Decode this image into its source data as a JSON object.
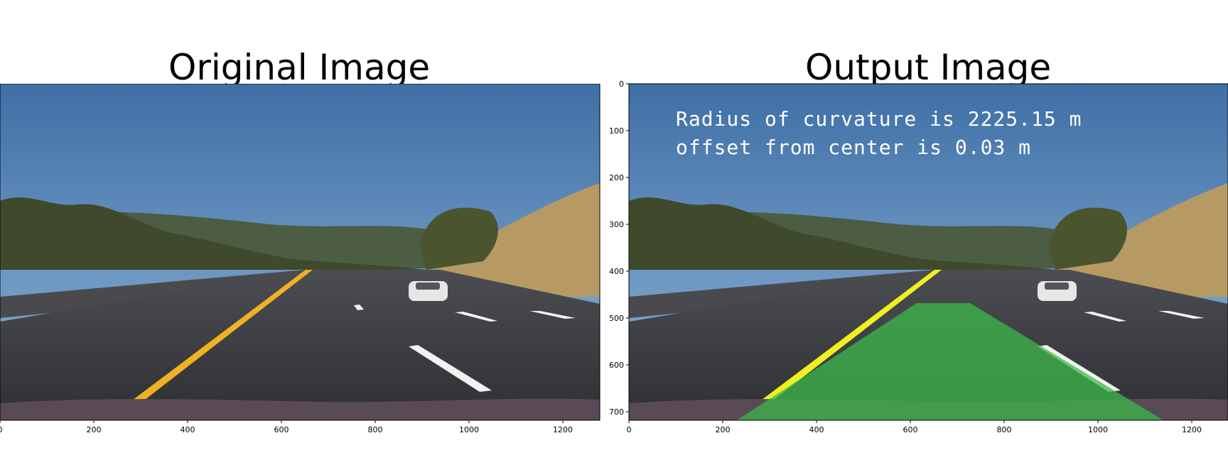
{
  "left_panel": {
    "title": "Original Image",
    "x_ticks": [
      "0",
      "200",
      "400",
      "600",
      "800",
      "1000",
      "1200"
    ]
  },
  "right_panel": {
    "title": "Output Image",
    "x_ticks": [
      "0",
      "200",
      "400",
      "600",
      "800",
      "1000",
      "1200"
    ],
    "y_ticks": [
      "0",
      "100",
      "200",
      "300",
      "400",
      "500",
      "600",
      "700"
    ],
    "annotation": {
      "line1": "Radius of curvature is 2225.15 m",
      "line2": "offset from center is 0.03 m"
    },
    "lane_overlay_color": "#3cb84a"
  },
  "colors": {
    "sky_top": "#3f6fa6",
    "sky_bottom": "#87aed1",
    "road": "#3a3b40",
    "lane_yellow": "#f0b223",
    "lane_white": "#f2f2f2",
    "hill": "#b79a63",
    "trees": "#3e4a2b"
  }
}
